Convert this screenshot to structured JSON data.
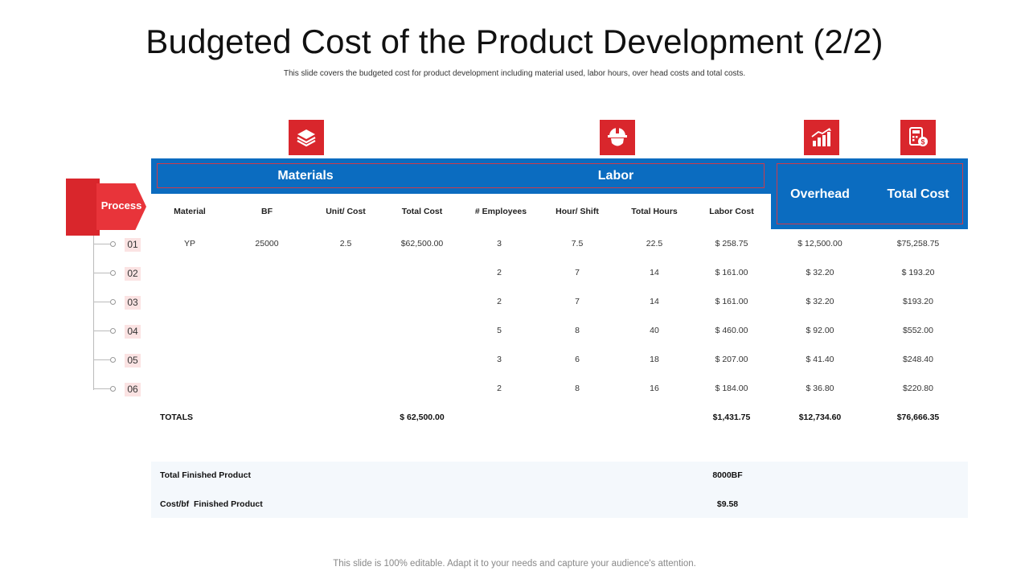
{
  "title": "Budgeted Cost of the Product Development (2/2)",
  "subtitle": "This slide covers the budgeted cost for product development including material used, labor hours, over head costs and total costs.",
  "icons": [
    "layers-icon",
    "hardhat-icon",
    "chart-growth-icon",
    "calculator-dollar-icon"
  ],
  "colors": {
    "accent_red": "#d9262c",
    "header_blue": "#0b6cc0",
    "badge_pink": "#fbe3e3"
  },
  "headers": {
    "materials": "Materials",
    "labor": "Labor",
    "overhead": "Overhead",
    "total_cost": "Total Cost"
  },
  "columns": {
    "material": "Material",
    "bf": "BF",
    "unit_cost": "Unit/ Cost",
    "total_cost": "Total Cost",
    "employees": "# Employees",
    "hour_shift": "Hour/ Shift",
    "total_hours": "Total Hours",
    "labor_cost": "Labor Cost"
  },
  "process": {
    "label": "Process",
    "steps": [
      "01",
      "02",
      "03",
      "04",
      "05",
      "06"
    ]
  },
  "rows": [
    {
      "material": "YP",
      "bf": "25000",
      "unit_cost": "2.5",
      "total_cost": "$62,500.00",
      "employees": "3",
      "hour_shift": "7.5",
      "total_hours": "22.5",
      "labor_cost": "$ 258.75",
      "overhead": "$ 12,500.00",
      "total": "$75,258.75"
    },
    {
      "material": "",
      "bf": "",
      "unit_cost": "",
      "total_cost": "",
      "employees": "2",
      "hour_shift": "7",
      "total_hours": "14",
      "labor_cost": "$ 161.00",
      "overhead": "$ 32.20",
      "total": "$ 193.20"
    },
    {
      "material": "",
      "bf": "",
      "unit_cost": "",
      "total_cost": "",
      "employees": "2",
      "hour_shift": "7",
      "total_hours": "14",
      "labor_cost": "$ 161.00",
      "overhead": "$ 32.20",
      "total": "$193.20"
    },
    {
      "material": "",
      "bf": "",
      "unit_cost": "",
      "total_cost": "",
      "employees": "5",
      "hour_shift": "8",
      "total_hours": "40",
      "labor_cost": "$ 460.00",
      "overhead": "$ 92.00",
      "total": "$552.00"
    },
    {
      "material": "",
      "bf": "",
      "unit_cost": "",
      "total_cost": "",
      "employees": "3",
      "hour_shift": "6",
      "total_hours": "18",
      "labor_cost": "$ 207.00",
      "overhead": "$ 41.40",
      "total": "$248.40"
    },
    {
      "material": "",
      "bf": "",
      "unit_cost": "",
      "total_cost": "",
      "employees": "2",
      "hour_shift": "8",
      "total_hours": "16",
      "labor_cost": "$ 184.00",
      "overhead": "$ 36.80",
      "total": "$220.80"
    }
  ],
  "totals": {
    "label": "TOTALS",
    "total_cost": "$ 62,500.00",
    "labor_cost": "$1,431.75",
    "overhead": "$12,734.60",
    "total": "$76,666.35"
  },
  "finished": {
    "total_label": "Total Finished Product",
    "total_value": "8000BF",
    "cost_label": "Cost/bf  Finished Product",
    "cost_value": "$9.58"
  },
  "footer": "This slide is 100% editable. Adapt it to your needs and capture your audience's attention."
}
